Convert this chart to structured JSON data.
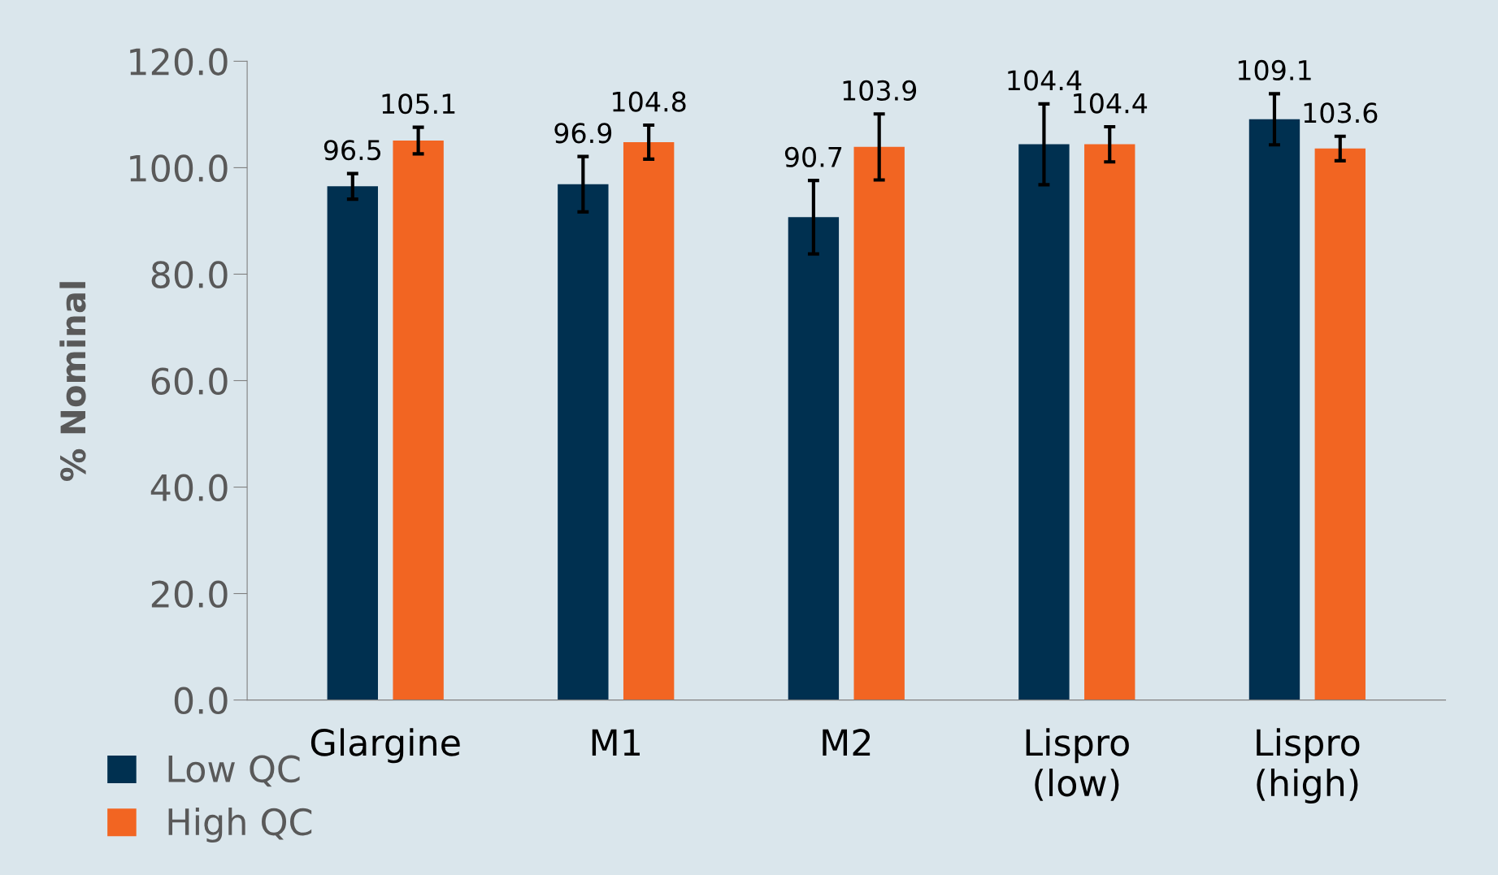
{
  "chart_data": {
    "type": "bar",
    "ylabel": "% Nominal",
    "categories": [
      "Glargine",
      "M1",
      "M2",
      "Lispro\n(low)",
      "Lispro\n(high)"
    ],
    "series": [
      {
        "name": "Low QC",
        "color": "#003050",
        "values": [
          96.5,
          96.9,
          90.7,
          104.4,
          109.1
        ],
        "errors": [
          2.4,
          5.2,
          6.9,
          7.6,
          4.8
        ]
      },
      {
        "name": "High QC",
        "color": "#f26522",
        "values": [
          105.1,
          104.8,
          103.9,
          104.4,
          103.6
        ],
        "errors": [
          2.5,
          3.2,
          6.2,
          3.3,
          2.3
        ]
      }
    ],
    "data_labels": true,
    "ylim": [
      0,
      120
    ],
    "yticks": [
      {
        "value": 0,
        "label": "0.0"
      },
      {
        "value": 20,
        "label": "20.0"
      },
      {
        "value": 40,
        "label": "40.0"
      },
      {
        "value": 60,
        "label": "60.0"
      },
      {
        "value": 80,
        "label": "80.0"
      },
      {
        "value": 100,
        "label": "100.0"
      },
      {
        "value": 120,
        "label": "120.0"
      }
    ],
    "grid": false,
    "legend": "bottom left"
  }
}
